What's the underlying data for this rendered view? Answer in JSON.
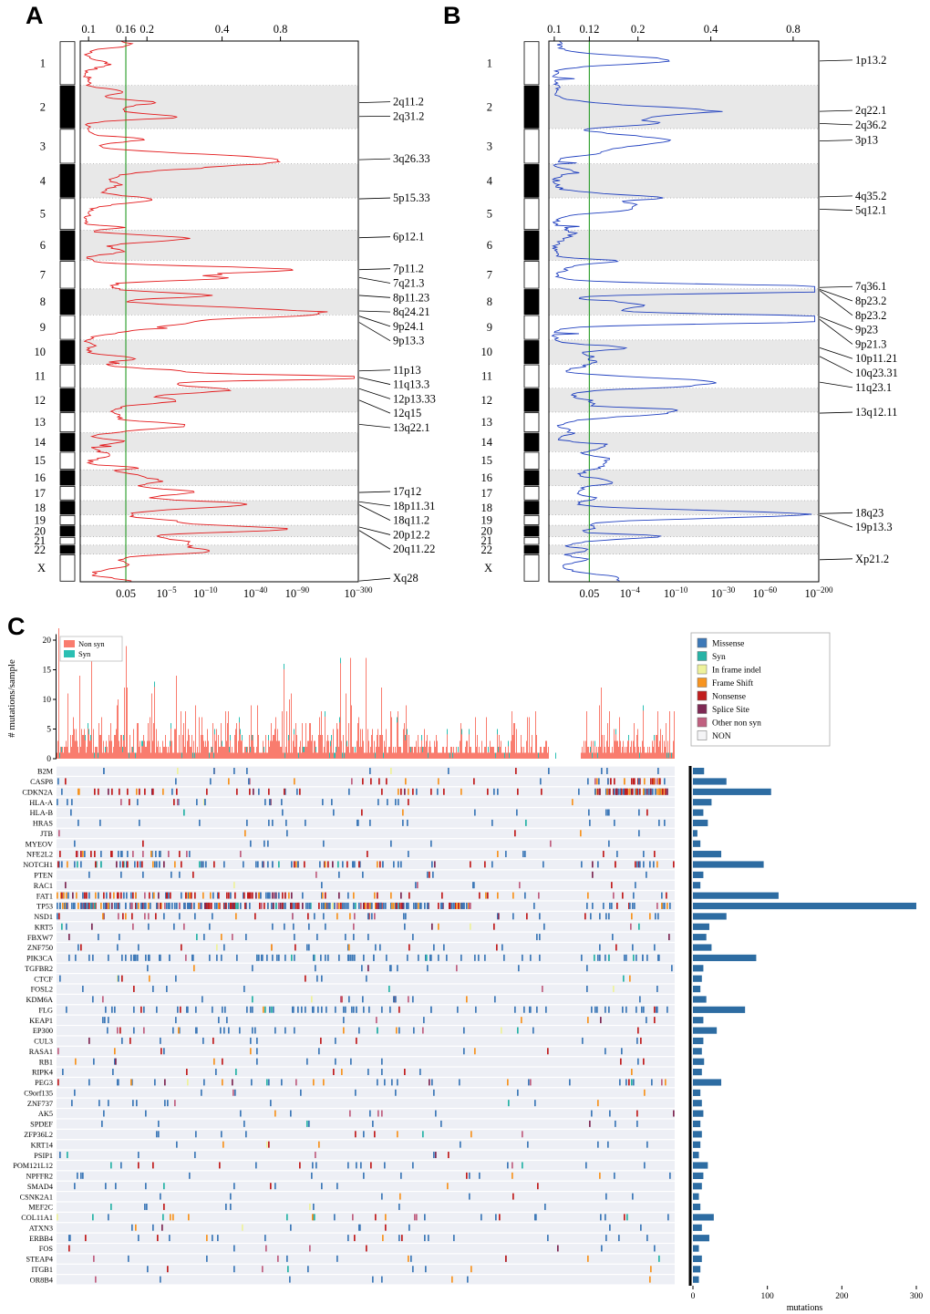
{
  "figure": {
    "panel_a_label": "A",
    "panel_b_label": "B",
    "panel_c_label": "C"
  },
  "genome": {
    "chromosomes": [
      {
        "name": "1",
        "len": 249
      },
      {
        "name": "2",
        "len": 243
      },
      {
        "name": "3",
        "len": 198
      },
      {
        "name": "4",
        "len": 191
      },
      {
        "name": "5",
        "len": 181
      },
      {
        "name": "6",
        "len": 171
      },
      {
        "name": "7",
        "len": 159
      },
      {
        "name": "8",
        "len": 146
      },
      {
        "name": "9",
        "len": 141
      },
      {
        "name": "10",
        "len": 136
      },
      {
        "name": "11",
        "len": 135
      },
      {
        "name": "12",
        "len": 134
      },
      {
        "name": "13",
        "len": 115
      },
      {
        "name": "14",
        "len": 107
      },
      {
        "name": "15",
        "len": 102
      },
      {
        "name": "16",
        "len": 90
      },
      {
        "name": "17",
        "len": 83
      },
      {
        "name": "18",
        "len": 80
      },
      {
        "name": "19",
        "len": 59
      },
      {
        "name": "20",
        "len": 64
      },
      {
        "name": "21",
        "len": 47
      },
      {
        "name": "22",
        "len": 51
      },
      {
        "name": "X",
        "len": 155
      }
    ]
  },
  "chart_data": [
    {
      "type": "line",
      "name": "gistic-amplification-profile",
      "panel": "A",
      "curve_color": "#e31a1c",
      "threshold_line_color": "#35a234",
      "threshold_f": 0.164,
      "top_axis_ticks": [
        {
          "label": "0.1",
          "f": 0.03
        },
        {
          "label": "0.16",
          "f": 0.164
        },
        {
          "label": "0.2",
          "f": 0.24
        },
        {
          "label": "0.4",
          "f": 0.51
        },
        {
          "label": "0.8",
          "f": 0.72
        }
      ],
      "bottom_axis_ticks": [
        {
          "label": "0.05",
          "f": 0.164
        },
        {
          "label": "1e-5",
          "f": 0.31
        },
        {
          "label": "1e-10",
          "f": 0.45
        },
        {
          "label": "1e-40",
          "f": 0.63
        },
        {
          "label": "1e-90",
          "f": 0.78
        },
        {
          "label": "1e-300",
          "f": 1.0
        }
      ],
      "peaks": [
        {
          "label": "2q11.2",
          "chrom": "2",
          "pos": 0.4,
          "value": 0.24
        },
        {
          "label": "2q31.2",
          "chrom": "2",
          "pos": 0.72,
          "value": 0.32
        },
        {
          "label": "3q26.33",
          "chrom": "3",
          "pos": 0.88,
          "value": 0.68,
          "sig": 6
        },
        {
          "label": "5p15.33",
          "chrom": "5",
          "pos": 0.03,
          "value": 0.17
        },
        {
          "label": "6p12.1",
          "chrom": "6",
          "pos": 0.25,
          "value": 0.3
        },
        {
          "label": "7p11.2",
          "chrom": "7",
          "pos": 0.32,
          "value": 0.64,
          "sig": 3.5
        },
        {
          "label": "7q21.3",
          "chrom": "7",
          "pos": 0.6,
          "value": 0.35
        },
        {
          "label": "8p11.23",
          "chrom": "8",
          "pos": 0.25,
          "value": 0.42
        },
        {
          "label": "8q24.21",
          "chrom": "8",
          "pos": 0.85,
          "value": 0.46,
          "sig": 4
        },
        {
          "label": "9p24.1",
          "chrom": "9",
          "pos": 0.05,
          "value": 0.43
        },
        {
          "label": "9p13.3",
          "chrom": "9",
          "pos": 0.3,
          "value": 0.25
        },
        {
          "label": "11p13",
          "chrom": "11",
          "pos": 0.28,
          "value": 0.3
        },
        {
          "label": "11q13.3",
          "chrom": "11",
          "pos": 0.55,
          "value": 0.93,
          "sig": 2.5
        },
        {
          "label": "12p13.33",
          "chrom": "12",
          "pos": 0.02,
          "value": 0.25
        },
        {
          "label": "12q15",
          "chrom": "12",
          "pos": 0.5,
          "value": 0.2
        },
        {
          "label": "13q22.1",
          "chrom": "13",
          "pos": 0.6,
          "value": 0.22
        },
        {
          "label": "17q12",
          "chrom": "17",
          "pos": 0.45,
          "value": 0.27
        },
        {
          "label": "18p11.31",
          "chrom": "18",
          "pos": 0.08,
          "value": 0.2
        },
        {
          "label": "18q11.2",
          "chrom": "18",
          "pos": 0.3,
          "value": 0.3
        },
        {
          "label": "20p12.2",
          "chrom": "20",
          "pos": 0.15,
          "value": 0.2
        },
        {
          "label": "20q11.22",
          "chrom": "20",
          "pos": 0.45,
          "value": 0.25
        },
        {
          "label": "Xq28",
          "chrom": "X",
          "pos": 0.97,
          "value": 0.15
        }
      ]
    },
    {
      "type": "line",
      "name": "gistic-deletion-profile",
      "panel": "B",
      "curve_color": "#1f3fbf",
      "threshold_line_color": "#35a234",
      "threshold_f": 0.15,
      "top_axis_ticks": [
        {
          "label": "0.1",
          "f": 0.02
        },
        {
          "label": "0.12",
          "f": 0.15
        },
        {
          "label": "0.2",
          "f": 0.33
        },
        {
          "label": "0.4",
          "f": 0.6
        },
        {
          "label": "0.8",
          "f": 0.905
        }
      ],
      "bottom_axis_ticks": [
        {
          "label": "0.05",
          "f": 0.15
        },
        {
          "label": "1e-4",
          "f": 0.3
        },
        {
          "label": "1e-10",
          "f": 0.47
        },
        {
          "label": "1e-30",
          "f": 0.645
        },
        {
          "label": "1e-60",
          "f": 0.8
        },
        {
          "label": "1e-200",
          "f": 1.0
        }
      ],
      "peaks": [
        {
          "label": "1p13.2",
          "chrom": "1",
          "pos": 0.45,
          "value": 0.35,
          "sig": 4
        },
        {
          "label": "2q22.1",
          "chrom": "2",
          "pos": 0.6,
          "value": 0.45,
          "sig": 6
        },
        {
          "label": "2q36.2",
          "chrom": "2",
          "pos": 0.88,
          "value": 0.33
        },
        {
          "label": "3p13",
          "chrom": "3",
          "pos": 0.35,
          "value": 0.4,
          "sig": 7
        },
        {
          "label": "4q35.2",
          "chrom": "4",
          "pos": 0.97,
          "value": 0.2
        },
        {
          "label": "5q12.1",
          "chrom": "5",
          "pos": 0.35,
          "value": 0.25,
          "sig": 4
        },
        {
          "label": "7q36.1",
          "chrom": "7",
          "pos": 0.95,
          "value": 0.45
        },
        {
          "label": "8p23.2",
          "chrom": "8",
          "pos": 0.02,
          "value": 0.68,
          "sig": 3.5
        },
        {
          "label": "8p23.2",
          "chrom": "8",
          "pos": 0.06,
          "value": 0.5
        },
        {
          "label": "9p23",
          "chrom": "9",
          "pos": 0.08,
          "value": 0.35
        },
        {
          "label": "9p21.3",
          "chrom": "9",
          "pos": 0.18,
          "value": 0.95,
          "sig": 3.5
        },
        {
          "label": "10p11.21",
          "chrom": "10",
          "pos": 0.32,
          "value": 0.15
        },
        {
          "label": "10q23.31",
          "chrom": "10",
          "pos": 0.68,
          "value": 0.13
        },
        {
          "label": "11q23.1",
          "chrom": "11",
          "pos": 0.75,
          "value": 0.52,
          "sig": 5
        },
        {
          "label": "13q12.11",
          "chrom": "13",
          "pos": 0.05,
          "value": 0.31
        },
        {
          "label": "18q23",
          "chrom": "18",
          "pos": 0.92,
          "value": 0.55,
          "sig": 4
        },
        {
          "label": "19p13.3",
          "chrom": "19",
          "pos": 0.05,
          "value": 0.15
        },
        {
          "label": "Xp21.2",
          "chrom": "X",
          "pos": 0.2,
          "value": 0.12
        }
      ]
    },
    {
      "type": "heatmap",
      "name": "mutation-oncoprint",
      "panel": "C",
      "top_histogram": {
        "ylabel": "# mutations/sample",
        "yticks": [
          0,
          5,
          10,
          15,
          20
        ],
        "ymax": 22,
        "n_samples": 678,
        "legend": [
          {
            "label": "Non syn",
            "color": "#f97c6e"
          },
          {
            "label": "Syn",
            "color": "#2bbfb3"
          }
        ]
      },
      "mutation_legend": [
        {
          "label": "Missense",
          "color": "#3d79b8"
        },
        {
          "label": "Syn",
          "color": "#27b3a6"
        },
        {
          "label": "In frame indel",
          "color": "#eef29b"
        },
        {
          "label": "Frame Shift",
          "color": "#f79420"
        },
        {
          "label": "Nonsense",
          "color": "#c11e1e"
        },
        {
          "label": "Splice Site",
          "color": "#7e2954"
        },
        {
          "label": "Other non syn",
          "color": "#c06080"
        },
        {
          "label": "NON",
          "color": "#f4f4f6"
        }
      ],
      "bar_color": "#2d6ca2",
      "grid_background": "#edeff5",
      "bottom_axis": {
        "ticks": [
          0,
          100,
          200,
          300
        ],
        "label": "mutations"
      },
      "default_type_mix": {
        "Missense": 0.6,
        "Nonsense": 0.12,
        "Frame Shift": 0.09,
        "Splice Site": 0.04,
        "Syn": 0.05,
        "In frame indel": 0.03,
        "Other non syn": 0.07
      },
      "genes": [
        {
          "name": "B2M",
          "mutations": 15
        },
        {
          "name": "CASP8",
          "mutations": 45,
          "cluster": [
            0.87,
            0.99,
            0.55
          ],
          "type_mix": {
            "Nonsense": 0.32,
            "Frame Shift": 0.25,
            "Missense": 0.25,
            "Other non syn": 0.1,
            "Splice Site": 0.08
          }
        },
        {
          "name": "CDKN2A",
          "mutations": 105,
          "cluster": [
            0.87,
            0.99,
            0.5
          ],
          "type_mix": {
            "Nonsense": 0.35,
            "Frame Shift": 0.25,
            "Missense": 0.28,
            "Splice Site": 0.12
          }
        },
        {
          "name": "HLA-A",
          "mutations": 25
        },
        {
          "name": "HLA-B",
          "mutations": 14
        },
        {
          "name": "HRAS",
          "mutations": 20,
          "type_mix": {
            "Missense": 0.92,
            "Syn": 0.08
          }
        },
        {
          "name": "JTB",
          "mutations": 6
        },
        {
          "name": "MYEOV",
          "mutations": 10
        },
        {
          "name": "NFE2L2",
          "mutations": 38,
          "cluster": [
            0.02,
            0.2,
            0.5
          ],
          "type_mix": {
            "Nonsense": 0.4,
            "Missense": 0.4,
            "Frame Shift": 0.12,
            "Other non syn": 0.08
          }
        },
        {
          "name": "NOTCH1",
          "mutations": 95,
          "cluster": [
            0.0,
            0.55,
            0.55
          ],
          "type_mix": {
            "Missense": 0.58,
            "Nonsense": 0.2,
            "Frame Shift": 0.12,
            "Splice Site": 0.05,
            "Syn": 0.05
          }
        },
        {
          "name": "PTEN",
          "mutations": 14
        },
        {
          "name": "RAC1",
          "mutations": 10
        },
        {
          "name": "FAT1",
          "mutations": 115,
          "cluster": [
            0.0,
            0.4,
            0.6
          ],
          "type_mix": {
            "Nonsense": 0.33,
            "Frame Shift": 0.25,
            "Missense": 0.3,
            "Splice Site": 0.07,
            "Other non syn": 0.05
          }
        },
        {
          "name": "TP53",
          "mutations": 300,
          "cluster": [
            0.0,
            0.67,
            0.85
          ],
          "type_mix": {
            "Missense": 0.48,
            "Nonsense": 0.17,
            "Frame Shift": 0.13,
            "Splice Site": 0.09,
            "Other non syn": 0.06,
            "Syn": 0.04,
            "In frame indel": 0.03
          }
        },
        {
          "name": "NSD1",
          "mutations": 45
        },
        {
          "name": "KRT5",
          "mutations": 22
        },
        {
          "name": "FBXW7",
          "mutations": 18
        },
        {
          "name": "ZNF750",
          "mutations": 25
        },
        {
          "name": "PIK3CA",
          "mutations": 85,
          "type_mix": {
            "Missense": 0.9,
            "Syn": 0.05,
            "Other non syn": 0.05
          }
        },
        {
          "name": "TGFBR2",
          "mutations": 14
        },
        {
          "name": "CTCF",
          "mutations": 12
        },
        {
          "name": "FOSL2",
          "mutations": 10
        },
        {
          "name": "KDM6A",
          "mutations": 18
        },
        {
          "name": "FLG",
          "mutations": 70,
          "type_mix": {
            "Missense": 0.8,
            "Nonsense": 0.08,
            "Syn": 0.07,
            "Frame Shift": 0.05
          }
        },
        {
          "name": "KEAP1",
          "mutations": 14
        },
        {
          "name": "EP300",
          "mutations": 32
        },
        {
          "name": "CUL3",
          "mutations": 14
        },
        {
          "name": "RASA1",
          "mutations": 12
        },
        {
          "name": "RB1",
          "mutations": 15
        },
        {
          "name": "RIPK4",
          "mutations": 12
        },
        {
          "name": "PEG3",
          "mutations": 38
        },
        {
          "name": "C9orf135",
          "mutations": 10
        },
        {
          "name": "ZNF737",
          "mutations": 12
        },
        {
          "name": "AK5",
          "mutations": 14
        },
        {
          "name": "SPDEF",
          "mutations": 10
        },
        {
          "name": "ZFP36L2",
          "mutations": 12
        },
        {
          "name": "KRT14",
          "mutations": 10
        },
        {
          "name": "PSIP1",
          "mutations": 8
        },
        {
          "name": "POM121L12",
          "mutations": 20
        },
        {
          "name": "NPFFR2",
          "mutations": 14
        },
        {
          "name": "SMAD4",
          "mutations": 12
        },
        {
          "name": "CSNK2A1",
          "mutations": 8
        },
        {
          "name": "MEF2C",
          "mutations": 10
        },
        {
          "name": "COL11A1",
          "mutations": 28
        },
        {
          "name": "ATXN3",
          "mutations": 12
        },
        {
          "name": "ERBB4",
          "mutations": 22
        },
        {
          "name": "FOS",
          "mutations": 8
        },
        {
          "name": "STEAP4",
          "mutations": 12
        },
        {
          "name": "ITGB1",
          "mutations": 10
        },
        {
          "name": "OR8B4",
          "mutations": 8
        }
      ]
    }
  ]
}
